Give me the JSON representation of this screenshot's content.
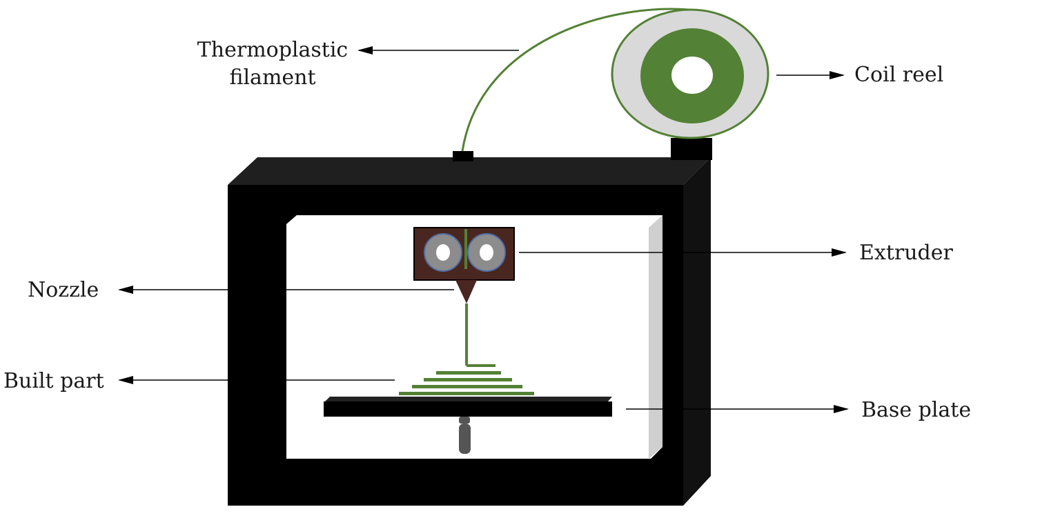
{
  "labels": {
    "thermoplastic_line1": "Thermoplastic",
    "thermoplastic_line2": "filament",
    "coil_reel": "Coil reel",
    "extruder": "Extruder",
    "nozzle": "Nozzle",
    "built_part": "Built part",
    "base_plate": "Base plate"
  },
  "colors": {
    "frame": "#000000",
    "frame_top": "#222222",
    "filament_green": "#538135",
    "reel_gray": "#d9d9d9",
    "extruder_brown": "#4a2620",
    "roller_gray": "#8c8c8c",
    "roller_ring": "#4e6fa8",
    "side_panel": "#cfcfcf",
    "arrow": "#000000"
  }
}
